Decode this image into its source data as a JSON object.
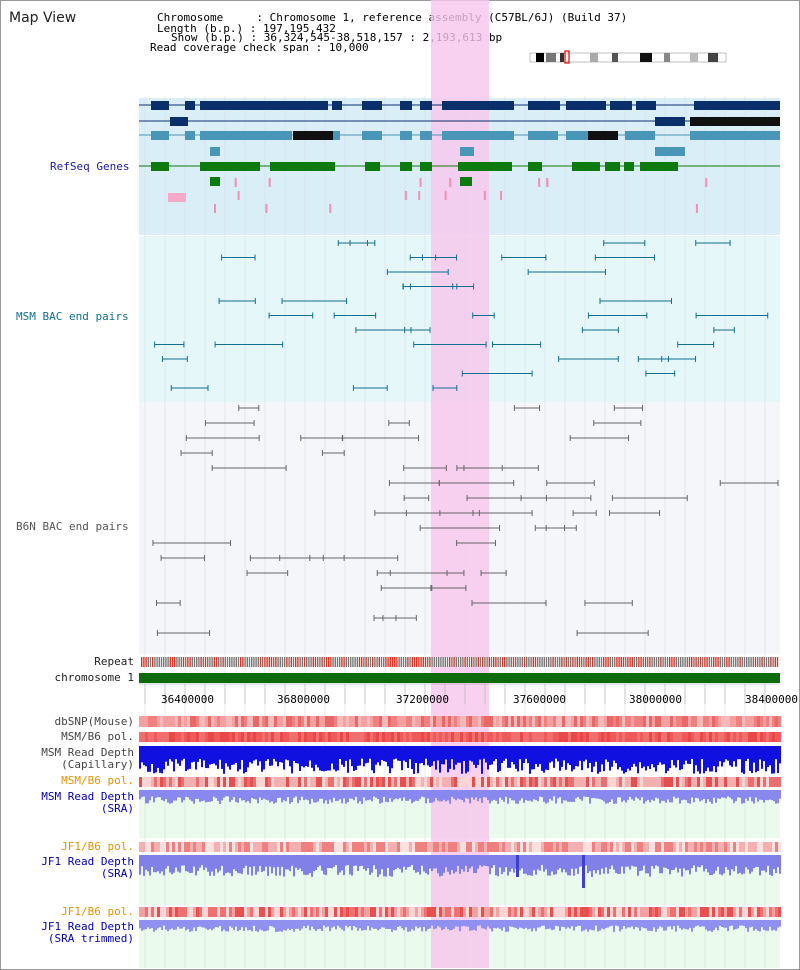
{
  "title": "Map View",
  "info": {
    "chromosome_key": "Chromosome",
    "chromosome_val": "Chromosome 1, reference assembly (C57BL/6J) (Build 37)",
    "length_key": "Length (b.p.)",
    "length_val": "197,195,432",
    "show_key": "Show (b.p.)",
    "show_val": "36,324,545-38,518,157 : 2,193,613 bp",
    "coverage_key": "Read coverage check span",
    "coverage_val": "10,000"
  },
  "tracks": {
    "refseq": "RefSeq Genes",
    "msm_bac": "MSM BAC end pairs",
    "b6n_bac": "B6N BAC end pairs",
    "repeat": "Repeat",
    "chromosome": "chromosome 1",
    "dbsnp": "dbSNP(Mouse)",
    "msm_b6_pol_1": "MSM/B6 pol.",
    "msm_depth_cap_1": "MSM Read Depth",
    "msm_depth_cap_2": "(Capillary)",
    "msm_b6_pol_2": "MSM/B6 pol.",
    "msm_depth_sra_1": "MSM Read Depth",
    "msm_depth_sra_2": "(SRA)",
    "jf1_b6_pol_1": "JF1/B6 pol.",
    "jf1_depth_sra_1": "JF1 Read Depth",
    "jf1_depth_sra_2": "(SRA)",
    "jf1_b6_pol_2": "JF1/B6 pol.",
    "jf1_depth_trim_1": "JF1 Read Depth",
    "jf1_depth_trim_2": "(SRA trimmed)"
  },
  "axis": {
    "ticks": [
      "36400000",
      "36800000",
      "37200000",
      "37600000",
      "38000000",
      "38400000"
    ]
  },
  "colors": {
    "refseq_label": "#1a1aa8",
    "msm_label": "#136f8f",
    "b6n_label": "#555555",
    "pol_orange": "#e69500",
    "depth_blue": "#0000aa",
    "highlight": "#f7c6ec"
  }
}
